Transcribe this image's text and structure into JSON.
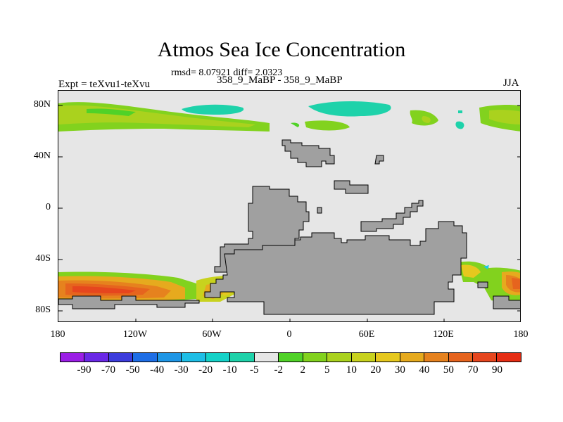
{
  "title": "Atmos Sea Ice Concentration",
  "stats_text": "rmsd= 8.07921 diff= 2.0323",
  "expt_text": "Expt = teXvu1-teXvu",
  "cases_text": "358_9_MaBP - 358_9_MaBP",
  "season": "JJA",
  "y_axis": {
    "labels": [
      "80N",
      "40N",
      "0",
      "40S",
      "80S"
    ],
    "values": [
      80,
      40,
      0,
      -40,
      -80
    ],
    "range": [
      -90,
      90
    ]
  },
  "x_axis": {
    "labels": [
      "180",
      "120W",
      "60W",
      "0",
      "60E",
      "120E",
      "180"
    ],
    "values": [
      -180,
      -120,
      -60,
      0,
      60,
      120,
      180
    ],
    "range": [
      -180,
      180
    ]
  },
  "colorbar": {
    "labels": [
      "-90",
      "-70",
      "-50",
      "-40",
      "-30",
      "-20",
      "-10",
      "-5",
      "-2",
      "2",
      "5",
      "10",
      "20",
      "30",
      "40",
      "50",
      "70",
      "90"
    ],
    "colors": [
      "#9b1ee6",
      "#6a28e6",
      "#3c3cdc",
      "#1e6ee6",
      "#1e96e6",
      "#1ebee6",
      "#14d2c8",
      "#1ed2aa",
      "#e6e6e6",
      "#50d228",
      "#82d21e",
      "#aad21e",
      "#c8d21e",
      "#e6c81e",
      "#e6aa1e",
      "#e6821e",
      "#e6641e",
      "#e6461e",
      "#e62d14"
    ]
  },
  "colors": {
    "land": "#a0a0a0",
    "neutral": "#e6e6e6"
  }
}
